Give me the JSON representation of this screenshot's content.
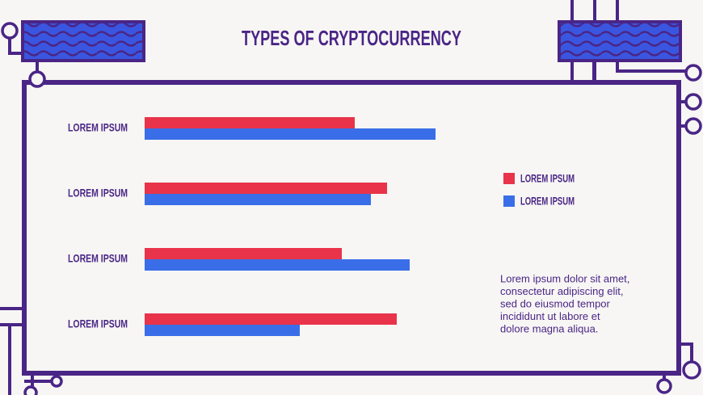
{
  "chart_data": {
    "type": "bar",
    "orientation": "horizontal",
    "title": "TYPES OF CRYPTOCURRENCY",
    "categories": [
      "LOREM IPSUM",
      "LOREM IPSUM",
      "LOREM IPSUM",
      "LOREM IPSUM"
    ],
    "series": [
      {
        "name": "LOREM IPSUM",
        "color": "#e8334a",
        "values": [
          65,
          75,
          61,
          78
        ]
      },
      {
        "name": "LOREM IPSUM",
        "color": "#3a6ee8",
        "values": [
          90,
          70,
          82,
          48
        ]
      }
    ],
    "text": [
      "Lorem ipsum dolor sit amet,",
      "consectetur adipiscing elit,",
      "sed do eiusmod tempor",
      "incididunt ut labore et",
      "dolore magna aliqua."
    ]
  }
}
